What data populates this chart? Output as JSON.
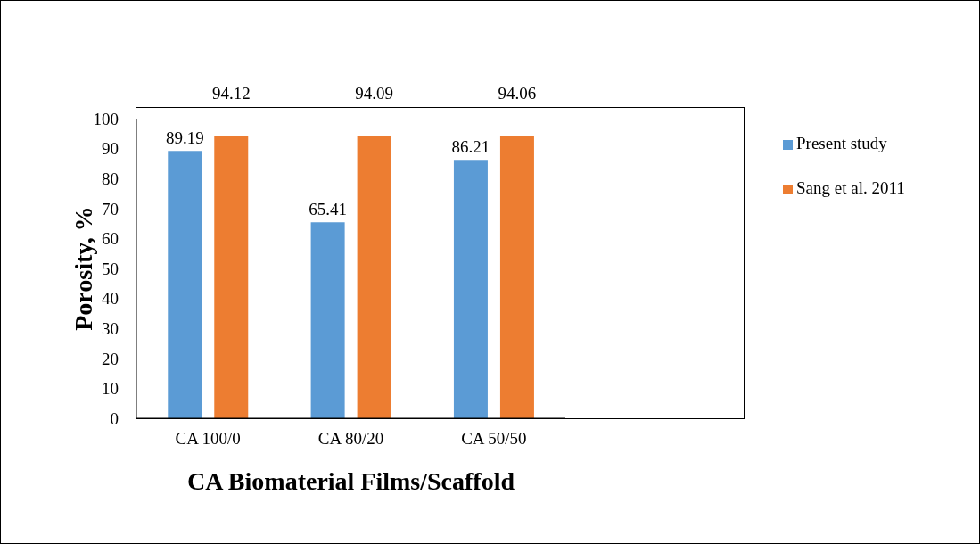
{
  "chart_data": {
    "type": "bar",
    "xlabel": "CA Biomaterial Films/Scaffold",
    "ylabel": "Porosity, %",
    "categories": [
      "CA 100/0",
      "CA 80/20",
      "CA 50/50"
    ],
    "series": [
      {
        "name": "Present study",
        "color": "#5b9bd5",
        "values": [
          89.19,
          65.41,
          86.21
        ]
      },
      {
        "name": "Sang et al. 2011",
        "color": "#ed7d31",
        "values": [
          94.12,
          94.09,
          94.06
        ]
      }
    ],
    "ylim": [
      0,
      100
    ],
    "yticks": [
      0,
      10,
      20,
      30,
      40,
      50,
      60,
      70,
      80,
      90,
      100
    ],
    "grid": false,
    "legend": "right",
    "data_labels": true
  }
}
